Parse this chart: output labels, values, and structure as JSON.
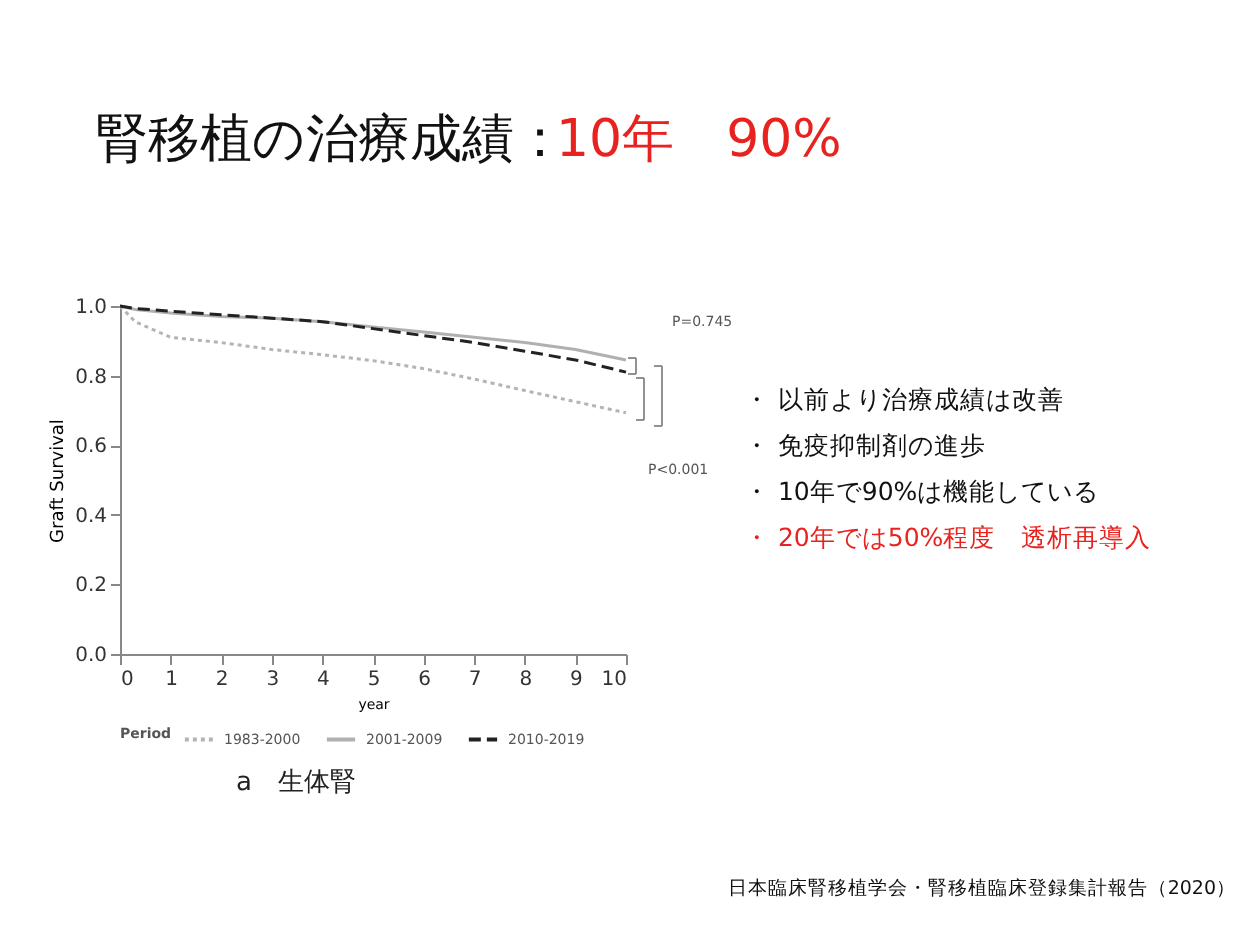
{
  "chart_data": {
    "type": "line",
    "title": "腎移植の治療成績：10年　90%",
    "xlabel": "year",
    "ylabel": "Graft Survival",
    "legend_title": "Period",
    "x": [
      0,
      0.3,
      1,
      2,
      3,
      4,
      5,
      6,
      7,
      8,
      9,
      10
    ],
    "series": [
      {
        "name": "1983-2000",
        "color": "#b4b4b4",
        "line_style": "dotted",
        "values": [
          1.0,
          0.955,
          0.91,
          0.895,
          0.875,
          0.86,
          0.843,
          0.82,
          0.79,
          0.757,
          0.725,
          0.693
        ]
      },
      {
        "name": "2001-2009",
        "color": "#b0b0b0",
        "line_style": "solid",
        "values": [
          1.0,
          0.99,
          0.98,
          0.97,
          0.965,
          0.955,
          0.94,
          0.925,
          0.91,
          0.895,
          0.875,
          0.845
        ]
      },
      {
        "name": "2010-2019",
        "color": "#222222",
        "line_style": "dashed",
        "values": [
          1.0,
          0.993,
          0.985,
          0.975,
          0.965,
          0.955,
          0.935,
          0.915,
          0.895,
          0.87,
          0.845,
          0.81
        ]
      }
    ],
    "xlim": [
      0,
      10
    ],
    "xticks": [
      0,
      1,
      2,
      3,
      4,
      5,
      6,
      7,
      8,
      9,
      10
    ],
    "ylim": [
      0,
      1
    ],
    "yticks": [
      {
        "value": 0,
        "label": "0.0"
      },
      {
        "value": 0.2,
        "label": "0.2"
      },
      {
        "value": 0.4,
        "label": "0.4"
      },
      {
        "value": 0.6,
        "label": "0.6"
      },
      {
        "value": 0.8,
        "label": "0.8"
      },
      {
        "value": 1,
        "label": "1.0"
      }
    ],
    "grid": false,
    "legend": "bottom",
    "marker": "none",
    "annotations": [
      "P=0.745",
      "P<0.001",
      "a　生体腎",
      "・ 以前より治療成績は改善",
      "・ 免疫抑制剤の進歩",
      "・ 10年で90%は機能している",
      "・ 20年では50%程度　透析再導入",
      "日本臨床腎移植学会・腎移植臨床登録集計報告（2020）"
    ]
  }
}
